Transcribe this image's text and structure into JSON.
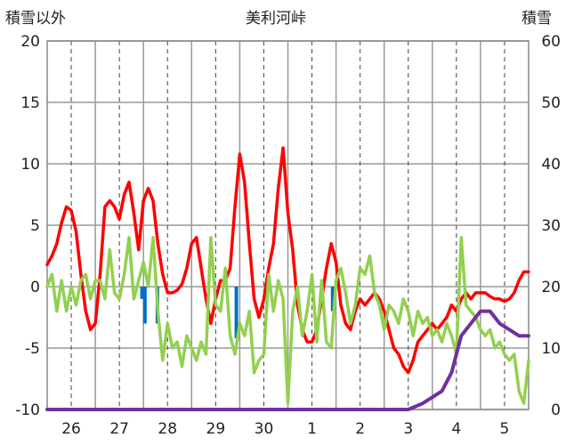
{
  "chart_data": {
    "type": "line",
    "title": "美利河峠",
    "ylabel_left": "積雪以外",
    "ylabel_right": "積雪",
    "ylim_left": [
      -10,
      20
    ],
    "ylim_right": [
      0,
      60
    ],
    "yticks_left": [
      "20",
      "15",
      "10",
      "5",
      "0",
      "-5",
      "-10"
    ],
    "yticks_right": [
      "60",
      "50",
      "40",
      "30",
      "20",
      "10",
      "0"
    ],
    "x_tick_labels": [
      "26",
      "27",
      "28",
      "29",
      "30",
      "1",
      "2",
      "3",
      "4",
      "5"
    ],
    "x_tick_positions_days": [
      0.5,
      1.5,
      2.5,
      3.5,
      4.5,
      5.5,
      6.5,
      7.5,
      8.5,
      9.5
    ],
    "xlim_days": [
      0,
      10
    ],
    "grid": true,
    "series": [
      {
        "color": "#ff0000",
        "axis": "left",
        "x": [
          0,
          0.1,
          0.2,
          0.3,
          0.4,
          0.5,
          0.6,
          0.7,
          0.8,
          0.9,
          1.0,
          1.1,
          1.2,
          1.3,
          1.4,
          1.5,
          1.6,
          1.7,
          1.8,
          1.9,
          2.0,
          2.1,
          2.2,
          2.3,
          2.4,
          2.5,
          2.6,
          2.7,
          2.8,
          2.9,
          3.0,
          3.1,
          3.2,
          3.3,
          3.4,
          3.5,
          3.6,
          3.7,
          3.8,
          3.9,
          4.0,
          4.1,
          4.2,
          4.3,
          4.4,
          4.5,
          4.6,
          4.7,
          4.8,
          4.9,
          5.0,
          5.1,
          5.2,
          5.3,
          5.4,
          5.5,
          5.6,
          5.7,
          5.8,
          5.9,
          6.0,
          6.1,
          6.2,
          6.3,
          6.4,
          6.5,
          6.6,
          6.7,
          6.8,
          6.9,
          7.0,
          7.1,
          7.2,
          7.3,
          7.4,
          7.5,
          7.6,
          7.7,
          7.8,
          7.9,
          8.0,
          8.1,
          8.2,
          8.3,
          8.4,
          8.5,
          8.6,
          8.7,
          8.8,
          8.9,
          9.0,
          9.1,
          9.2,
          9.3,
          9.4,
          9.5,
          9.6,
          9.7,
          9.8,
          9.9,
          10.0
        ],
        "values": [
          1.8,
          2.5,
          3.5,
          5.2,
          6.5,
          6.2,
          4.5,
          1.0,
          -2.0,
          -3.5,
          -3.0,
          1.0,
          6.5,
          7.0,
          6.5,
          5.5,
          7.5,
          8.5,
          6.0,
          3.0,
          7.0,
          8.0,
          7.0,
          3.5,
          1.0,
          -0.5,
          -0.5,
          -0.3,
          0.2,
          1.5,
          3.5,
          4.0,
          1.5,
          -1.0,
          -3.0,
          -1.0,
          0.5,
          0.5,
          1.5,
          6.5,
          10.8,
          8.5,
          3.5,
          -1.0,
          -2.5,
          -1.0,
          1.5,
          3.5,
          8.0,
          11.3,
          6.0,
          3.0,
          -1.5,
          -3.5,
          -4.5,
          -4.5,
          -3.5,
          -1.0,
          1.5,
          3.5,
          2.0,
          -1.5,
          -3.0,
          -3.5,
          -2.0,
          -1.0,
          -1.5,
          -1.0,
          -0.5,
          -1.0,
          -2.0,
          -3.5,
          -5.0,
          -5.5,
          -6.5,
          -7.0,
          -6.0,
          -4.5,
          -4.0,
          -3.5,
          -3.0,
          -3.5,
          -3.0,
          -2.5,
          -1.5,
          -2.0,
          -1.0,
          -0.5,
          -1.0,
          -0.5,
          -0.5,
          -0.5,
          -0.8,
          -1.0,
          -1.0,
          -1.2,
          -1.0,
          -0.5,
          0.5,
          1.2,
          1.2
        ]
      },
      {
        "color": "#92d050",
        "axis": "left",
        "x": [
          0,
          0.1,
          0.2,
          0.3,
          0.4,
          0.5,
          0.6,
          0.7,
          0.8,
          0.9,
          1.0,
          1.1,
          1.2,
          1.3,
          1.4,
          1.5,
          1.6,
          1.7,
          1.8,
          1.9,
          2.0,
          2.1,
          2.2,
          2.3,
          2.4,
          2.5,
          2.6,
          2.7,
          2.8,
          2.9,
          3.0,
          3.1,
          3.2,
          3.3,
          3.4,
          3.5,
          3.6,
          3.7,
          3.8,
          3.9,
          4.0,
          4.1,
          4.2,
          4.3,
          4.4,
          4.5,
          4.6,
          4.7,
          4.8,
          4.9,
          5.0,
          5.1,
          5.2,
          5.3,
          5.4,
          5.5,
          5.6,
          5.7,
          5.8,
          5.9,
          6.0,
          6.1,
          6.2,
          6.3,
          6.4,
          6.5,
          6.6,
          6.7,
          6.8,
          6.9,
          7.0,
          7.1,
          7.2,
          7.3,
          7.4,
          7.5,
          7.6,
          7.7,
          7.8,
          7.9,
          8.0,
          8.1,
          8.2,
          8.3,
          8.4,
          8.5,
          8.6,
          8.7,
          8.8,
          8.9,
          9.0,
          9.1,
          9.2,
          9.3,
          9.4,
          9.5,
          9.6,
          9.7,
          9.8,
          9.9,
          10.0
        ],
        "values": [
          0.0,
          1.0,
          -2.0,
          0.5,
          -2.0,
          0.0,
          -1.5,
          0.5,
          1.0,
          -1.0,
          0.5,
          0.5,
          -1.0,
          3.0,
          -0.5,
          -1.0,
          1.0,
          4.0,
          -1.0,
          0.5,
          2.0,
          0.0,
          4.0,
          -2.0,
          -6.0,
          -3.0,
          -5.0,
          -4.5,
          -6.5,
          -4.0,
          -5.0,
          -6.0,
          -4.5,
          -5.5,
          4.0,
          -1.5,
          -2.0,
          1.5,
          -4.0,
          -5.5,
          -3.0,
          -4.0,
          -2.0,
          -7.0,
          -6.0,
          -5.5,
          1.0,
          -2.0,
          0.5,
          -1.0,
          -9.5,
          -2.0,
          0.0,
          -4.0,
          -2.0,
          1.0,
          -4.5,
          0.5,
          -4.5,
          -5.0,
          0.5,
          1.5,
          -0.5,
          -3.0,
          -1.5,
          1.5,
          1.0,
          2.5,
          -0.5,
          -1.5,
          -3.5,
          -1.5,
          -2.0,
          -3.0,
          -1.0,
          -2.0,
          -4.0,
          -2.0,
          -3.0,
          -2.5,
          -4.0,
          -3.5,
          -4.5,
          -3.0,
          -4.0,
          -5.5,
          4.0,
          -1.5,
          -2.0,
          -2.5,
          -3.5,
          -4.0,
          -3.5,
          -5.0,
          -4.5,
          -5.5,
          -6.0,
          -5.5,
          -8.5,
          -9.5,
          -6.0
        ]
      },
      {
        "color": "#7030a0",
        "axis": "right",
        "x": [
          0,
          0.5,
          1.0,
          1.5,
          2.0,
          2.5,
          3.0,
          3.5,
          4.0,
          4.5,
          5.0,
          5.5,
          6.0,
          6.5,
          7.0,
          7.5,
          7.8,
          8.0,
          8.2,
          8.4,
          8.6,
          8.8,
          9.0,
          9.2,
          9.4,
          9.6,
          9.8,
          10.0
        ],
        "values": [
          0,
          0,
          0,
          0,
          0,
          0,
          0,
          0,
          0,
          0,
          0,
          0,
          0,
          0,
          0,
          0,
          1,
          2,
          3,
          6,
          12,
          14,
          16,
          16,
          14,
          13,
          12,
          12
        ]
      }
    ],
    "precip_bars": {
      "color": "#0070c0",
      "axis": "left",
      "x": [
        1.97,
        2.03,
        2.29,
        3.93,
        5.93
      ],
      "values": [
        -1.0,
        -3.0,
        -3.0,
        -4.2,
        -2.0
      ]
    }
  }
}
